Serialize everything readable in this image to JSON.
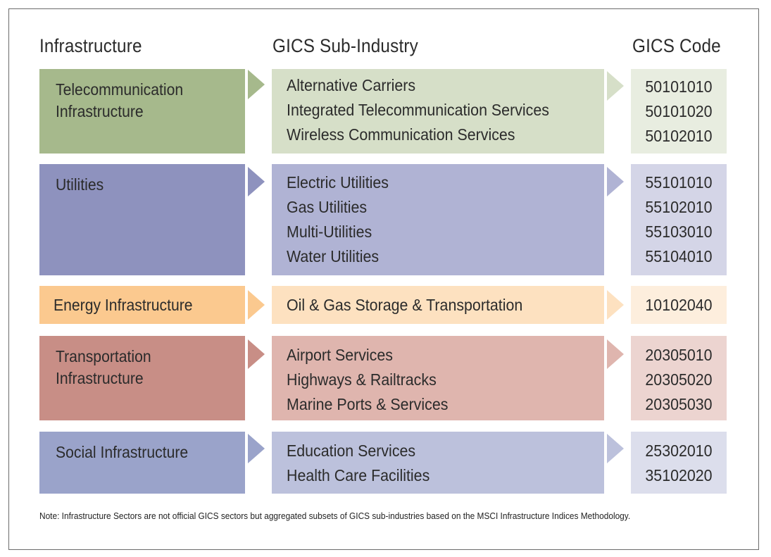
{
  "headers": {
    "col1": "Infrastructure",
    "col2": "GICS Sub-Industry",
    "col3": "GICS Code"
  },
  "rows": [
    {
      "sector": [
        "Telecommunication",
        "Infrastructure"
      ],
      "sub_industries": [
        "Alternative Carriers",
        "Integrated Telecommunication Services",
        "Wireless Communication Services"
      ],
      "codes": [
        "50101010",
        "50101020",
        "50102010"
      ],
      "colors": {
        "sector": "#a6b98c",
        "sub": "#d6dfc8",
        "code": "#e8ede0"
      }
    },
    {
      "sector": [
        "Utilities"
      ],
      "sub_industries": [
        "Electric Utilities",
        "Gas Utilities",
        "Multi-Utilities",
        "Water Utilities"
      ],
      "codes": [
        "55101010",
        "55102010",
        "55103010",
        "55104010"
      ],
      "colors": {
        "sector": "#8e92be",
        "sub": "#b0b3d4",
        "code": "#d4d5e7"
      }
    },
    {
      "sector": [
        "Energy Infrastructure"
      ],
      "sub_industries": [
        "Oil & Gas Storage & Transportation"
      ],
      "codes": [
        "10102040"
      ],
      "colors": {
        "sector": "#fbc98f",
        "sub": "#fde1c0",
        "code": "#fdeedd"
      }
    },
    {
      "sector": [
        "Transportation",
        "Infrastructure"
      ],
      "sub_industries": [
        "Airport Services",
        "Highways & Railtracks",
        "Marine Ports & Services"
      ],
      "codes": [
        "20305010",
        "20305020",
        "20305030"
      ],
      "colors": {
        "sector": "#c88e86",
        "sub": "#dfb5ae",
        "code": "#ecd4d0"
      }
    },
    {
      "sector": [
        "Social Infrastructure"
      ],
      "sub_industries": [
        "Education Services",
        "Health Care Facilities"
      ],
      "codes": [
        "25302010",
        "35102020"
      ],
      "colors": {
        "sector": "#9aa3ca",
        "sub": "#bcc1dc",
        "code": "#dcdeec"
      }
    }
  ],
  "note": "Note: Infrastructure Sectors are not official GICS sectors but aggregated subsets of GICS sub-industries based on the MSCI Infrastructure Indices Methodology."
}
